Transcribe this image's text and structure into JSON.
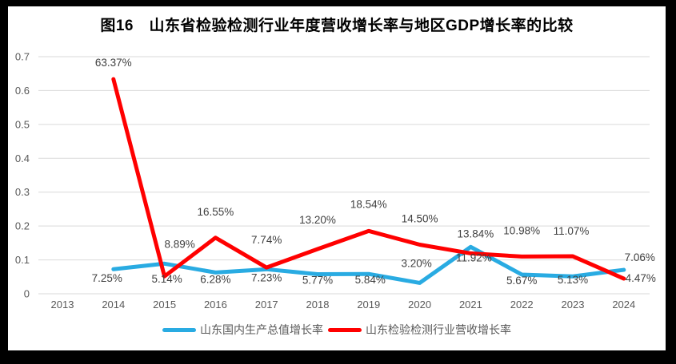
{
  "title": "图16　山东省检验检测行业年度营收增长率与地区GDP增长率的比较",
  "colors": {
    "frame": "#000000",
    "plot_background": "#ffffff",
    "gridline": "#D9D9D9",
    "axis_text": "#595959",
    "data_label_text": "#404040",
    "title_text": "#000000"
  },
  "chart_data": {
    "type": "line",
    "title": "图16　山东省检验检测行业年度营收增长率与地区GDP增长率的比较",
    "categories": [
      "2013",
      "2014",
      "2015",
      "2016",
      "2017",
      "2018",
      "2019",
      "2020",
      "2021",
      "2022",
      "2023",
      "2024"
    ],
    "y_ticks": [
      "0",
      "0.1",
      "0.2",
      "0.3",
      "0.4",
      "0.5",
      "0.6",
      "0.7"
    ],
    "ylim": [
      0,
      0.7
    ],
    "grid": "horizontal",
    "legend_position": "bottom",
    "value_format": "percent_two_decimals",
    "series": [
      {
        "key": "gdp",
        "name": "山东国内生产总值增长率",
        "color": "#29ABE2",
        "values_pct": [
          null,
          7.25,
          8.89,
          6.28,
          7.23,
          5.77,
          5.84,
          3.2,
          13.84,
          5.67,
          5.13,
          7.06
        ],
        "label_dx": [
          0,
          -8,
          19,
          0,
          0,
          0,
          2,
          -4,
          6,
          0,
          0,
          20
        ],
        "label_dy": [
          0,
          16,
          -20,
          13,
          15,
          12,
          12,
          -20,
          -12,
          12,
          9,
          -11
        ]
      },
      {
        "key": "industry",
        "name": "山东检验检测行业营收增长率",
        "color": "#FF0000",
        "values_pct": [
          null,
          63.37,
          5.14,
          16.55,
          7.74,
          13.2,
          18.54,
          14.5,
          11.92,
          10.98,
          11.07,
          4.47
        ],
        "label_dx": [
          0,
          0,
          3,
          0,
          0,
          0,
          0,
          0,
          4,
          0,
          -2,
          21
        ],
        "label_dy": [
          0,
          -16,
          8,
          -28,
          -30,
          -32,
          -29,
          -28,
          10,
          -28,
          -27,
          4
        ]
      }
    ]
  }
}
